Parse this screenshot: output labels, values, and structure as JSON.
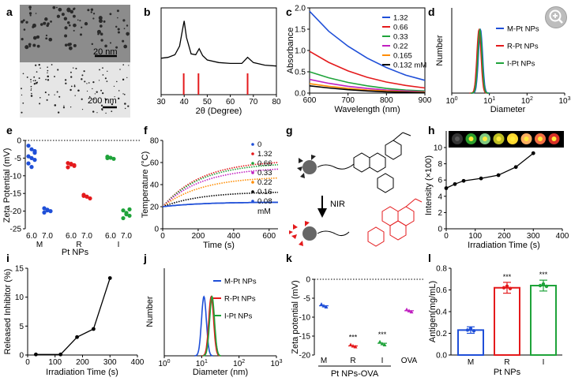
{
  "zoom": {
    "icon": "zoom-in-icon"
  },
  "panels": {
    "a": {
      "label": "a",
      "scale_top": "20 nm",
      "scale_bottom": "200 nm"
    },
    "b": {
      "label": "b",
      "xlabel": "2θ (Degree)",
      "xticks": [
        "30",
        "40",
        "50",
        "60",
        "70",
        "80"
      ]
    },
    "c": {
      "label": "c",
      "ylabel": "Absorbance",
      "xlabel": "Wavelength (nm)",
      "xticks": [
        "600",
        "700",
        "800",
        "900"
      ],
      "yticks": [
        "0.0",
        "0.5",
        "1.0",
        "1.5",
        "2.0"
      ],
      "legend": [
        "1.32",
        "0.66",
        "0.33",
        "0.22",
        "0.165",
        "0.132 mM"
      ]
    },
    "d": {
      "label": "d",
      "ylabel": "Number",
      "xlabel": "Diameter",
      "xticks": [
        "10⁰",
        "10¹",
        "10²",
        "10³"
      ],
      "xtick_base": "10",
      "xtick_exps": [
        "0",
        "1",
        "2",
        "3"
      ],
      "legend": [
        "M-Pt NPs",
        "R-Pt NPs",
        "I-Pt NPs"
      ]
    },
    "e": {
      "label": "e",
      "ylabel": "Zeta Potential (mV)",
      "xlabel": "Pt NPs",
      "yticks": [
        "0",
        "-5",
        "-10",
        "-15",
        "-20",
        "-25"
      ],
      "ph": [
        "6.0",
        "7.0",
        "6.0",
        "7.0",
        "6.0",
        "7.0"
      ],
      "groups": [
        "M",
        "R",
        "I"
      ]
    },
    "f": {
      "label": "f",
      "ylabel": "Temperature (°C)",
      "xlabel": "Time (s)",
      "xticks": [
        "0",
        "200",
        "400",
        "600"
      ],
      "yticks": [
        "0",
        "20",
        "40",
        "60",
        "80"
      ],
      "legend": [
        "0",
        "1.32",
        "0.66",
        "0.33",
        "0.22",
        "0.16",
        "0.08"
      ],
      "unit": "mM"
    },
    "g": {
      "label": "g",
      "arrow_label": "NIR"
    },
    "h": {
      "label": "h",
      "ylabel": "Intensity (×100)",
      "xlabel": "Irradiation Time (s)",
      "xticks": [
        "0",
        "100",
        "200",
        "300",
        "400"
      ],
      "yticks": [
        "0",
        "2",
        "4",
        "6",
        "8",
        "10"
      ]
    },
    "i": {
      "label": "i",
      "ylabel": "Released Inhibitor (%)",
      "xlabel": "Irradiation Time (s)",
      "xticks": [
        "0",
        "100",
        "200",
        "300",
        "400"
      ],
      "yticks": [
        "0",
        "5",
        "10",
        "15"
      ]
    },
    "j": {
      "label": "j",
      "ylabel": "Number",
      "xlabel": "Diameter   (nm)",
      "xticks": [
        "10⁰",
        "10¹",
        "10²",
        "10³"
      ],
      "xtick_base": "10",
      "xtick_exps": [
        "0",
        "1",
        "2",
        "3"
      ],
      "legend": [
        "M-Pt NPs",
        "R-Pt NPs",
        "I-Pt NPs"
      ]
    },
    "k": {
      "label": "k",
      "ylabel": "Zeta potential (mV)",
      "xticks": [
        "M",
        "R",
        "I",
        "OVA"
      ],
      "group_label": "Pt NPs-OVA",
      "yticks": [
        "0",
        "-5",
        "-10",
        "-15",
        "-20"
      ],
      "sig": "***"
    },
    "l": {
      "label": "l",
      "ylabel": "Antigen(mg/mL)",
      "xlabel": "Pt NPs",
      "xticks": [
        "M",
        "R",
        "I"
      ],
      "yticks": [
        "0.0",
        "0.2",
        "0.4",
        "0.6",
        "0.8"
      ],
      "sig": "***"
    }
  },
  "chart_data": [
    {
      "panel": "b",
      "type": "line",
      "xlim": [
        30,
        80
      ],
      "x": [
        30,
        33,
        36,
        38,
        39.5,
        40,
        41,
        43,
        45,
        46.5,
        48,
        50,
        55,
        60,
        65,
        67.5,
        70,
        75,
        80
      ],
      "values": [
        4.2,
        4.3,
        4.6,
        5.6,
        7.8,
        8.5,
        6.6,
        4.7,
        4.6,
        5.3,
        4.5,
        4.0,
        3.7,
        3.6,
        3.6,
        4.3,
        3.7,
        3.4,
        3.3
      ],
      "reference_peaks": [
        39.8,
        46.2,
        67.5
      ]
    },
    {
      "panel": "c",
      "type": "line",
      "xlim": [
        600,
        900
      ],
      "ylim": [
        0,
        2.0
      ],
      "x": [
        600,
        650,
        700,
        750,
        800,
        850,
        900
      ],
      "series": [
        {
          "name": "1.32",
          "color": "#1f4fd8",
          "values": [
            1.92,
            1.45,
            1.1,
            0.82,
            0.6,
            0.42,
            0.3
          ]
        },
        {
          "name": "0.66",
          "color": "#e41a1c",
          "values": [
            0.98,
            0.72,
            0.52,
            0.37,
            0.26,
            0.18,
            0.12
          ]
        },
        {
          "name": "0.33",
          "color": "#1fa33a",
          "values": [
            0.5,
            0.36,
            0.25,
            0.17,
            0.11,
            0.07,
            0.05
          ]
        },
        {
          "name": "0.22",
          "color": "#c01fc0",
          "values": [
            0.32,
            0.23,
            0.16,
            0.11,
            0.07,
            0.05,
            0.03
          ]
        },
        {
          "name": "0.165",
          "color": "#ff8c00",
          "values": [
            0.22,
            0.16,
            0.11,
            0.07,
            0.05,
            0.03,
            0.02
          ]
        },
        {
          "name": "0.132 mM",
          "color": "#000000",
          "values": [
            0.17,
            0.12,
            0.08,
            0.05,
            0.03,
            0.02,
            0.01
          ]
        }
      ]
    },
    {
      "panel": "d",
      "type": "line",
      "series": [
        {
          "name": "M-Pt NPs",
          "color": "#1f4fd8",
          "peak": 5.8
        },
        {
          "name": "R-Pt NPs",
          "color": "#e41a1c",
          "peak": 5.3
        },
        {
          "name": "I-Pt NPs",
          "color": "#1fa33a",
          "peak": 5.6
        }
      ]
    },
    {
      "panel": "e",
      "type": "scatter",
      "ylim": [
        -25,
        0
      ],
      "groups": [
        {
          "name": "M 6.0",
          "color": "#1f4fd8",
          "values": [
            -1.5,
            -2.5,
            -3.5,
            -4.5,
            -5.0,
            -5.5,
            -6.5,
            -7.5,
            -3.0
          ]
        },
        {
          "name": "M 7.0",
          "color": "#1f4fd8",
          "values": [
            -19.2,
            -19.6,
            -20.0,
            -20.4,
            -19.8
          ]
        },
        {
          "name": "R 6.0",
          "color": "#e41a1c",
          "values": [
            -6.4,
            -6.8,
            -7.2,
            -7.6,
            -6.6,
            -7.0
          ]
        },
        {
          "name": "R 7.0",
          "color": "#e41a1c",
          "values": [
            -15.4,
            -15.9,
            -16.4,
            -15.7
          ]
        },
        {
          "name": "I 6.0",
          "color": "#1fa33a",
          "values": [
            -4.6,
            -4.9,
            -5.2,
            -5.0
          ]
        },
        {
          "name": "I 7.0",
          "color": "#1fa33a",
          "values": [
            -19.8,
            -20.5,
            -21.3,
            -22.0,
            -20.9,
            -19.5
          ]
        }
      ]
    },
    {
      "panel": "f",
      "type": "line",
      "xlim": [
        0,
        650
      ],
      "ylim": [
        0,
        80
      ],
      "series": [
        {
          "name": "0",
          "color": "#1f4fd8",
          "end": 24
        },
        {
          "name": "1.32",
          "color": "#e41a1c",
          "end": 60
        },
        {
          "name": "0.66",
          "color": "#1fa33a",
          "end": 58
        },
        {
          "name": "0.33",
          "color": "#c01fc0",
          "end": 54
        },
        {
          "name": "0.22",
          "color": "#ff8c00",
          "end": 46
        },
        {
          "name": "0.16",
          "color": "#000000",
          "end": 33
        },
        {
          "name": "0.08",
          "color": "#1f4fd8",
          "end": 24
        }
      ]
    },
    {
      "panel": "h",
      "type": "line",
      "xlim": [
        0,
        400
      ],
      "ylim": [
        0,
        10
      ],
      "x": [
        0,
        30,
        60,
        120,
        180,
        240,
        300
      ],
      "values": [
        5.0,
        5.5,
        5.9,
        6.2,
        6.6,
        7.6,
        9.3
      ]
    },
    {
      "panel": "i",
      "type": "line",
      "xlim": [
        0,
        400
      ],
      "ylim": [
        0,
        15
      ],
      "x": [
        30,
        120,
        180,
        240,
        300
      ],
      "values": [
        0.1,
        0.1,
        3.1,
        4.5,
        13.3
      ]
    },
    {
      "panel": "j",
      "type": "line",
      "series": [
        {
          "name": "M-Pt NPs",
          "color": "#1f4fd8",
          "peak": 11.5
        },
        {
          "name": "R-Pt NPs",
          "color": "#e41a1c",
          "peak": 18
        },
        {
          "name": "I-Pt NPs",
          "color": "#1fa33a",
          "peak": 19
        }
      ]
    },
    {
      "panel": "k",
      "type": "scatter",
      "ylim": [
        -20,
        0
      ],
      "groups": [
        {
          "name": "M",
          "color": "#1f4fd8",
          "values": [
            -6.6,
            -7.0,
            -7.3
          ],
          "mean": -7.0
        },
        {
          "name": "R",
          "color": "#e41a1c",
          "values": [
            -17.3,
            -17.6,
            -17.8
          ],
          "mean": -17.6
        },
        {
          "name": "I",
          "color": "#1fa33a",
          "values": [
            -16.5,
            -17.0,
            -17.3
          ],
          "mean": -16.9
        },
        {
          "name": "OVA",
          "color": "#c01fc0",
          "values": [
            -8.0,
            -8.3,
            -8.6
          ],
          "mean": -8.3
        }
      ]
    },
    {
      "panel": "l",
      "type": "bar",
      "ylim": [
        0,
        0.8
      ],
      "categories": [
        "M",
        "R",
        "I"
      ],
      "values": [
        0.23,
        0.62,
        0.64
      ],
      "errors": [
        0.03,
        0.05,
        0.05
      ],
      "colors": [
        "#1f4fd8",
        "#e41a1c",
        "#1fa33a"
      ]
    }
  ]
}
